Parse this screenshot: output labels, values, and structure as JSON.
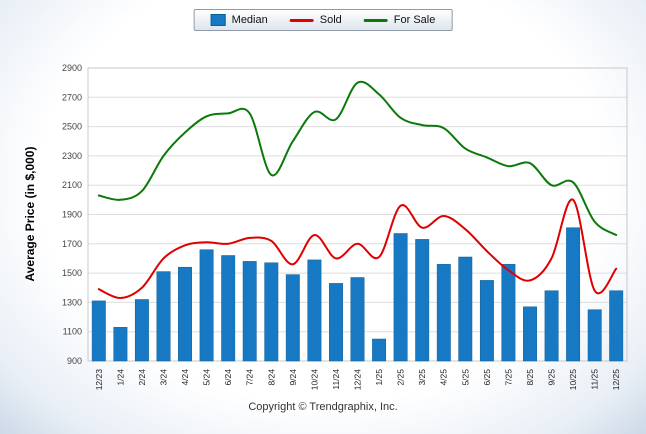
{
  "footer": {
    "copyright": "Copyright © Trendgraphix, Inc."
  },
  "chart_data": {
    "type": "bar",
    "subtype": "combo-bar-line",
    "title": "",
    "xlabel": "",
    "ylabel": "Average Price (in $,000)",
    "ylim": [
      900,
      2900
    ],
    "ytick_step": 200,
    "grid": true,
    "legend_position": "top",
    "categories": [
      "12/23",
      "1/24",
      "2/24",
      "3/24",
      "4/24",
      "5/24",
      "6/24",
      "7/24",
      "8/24",
      "9/24",
      "10/24",
      "11/24",
      "12/24",
      "1/25",
      "2/25",
      "3/25",
      "4/25",
      "5/25",
      "6/25",
      "7/25",
      "8/25",
      "9/25",
      "10/25",
      "11/25",
      "12/25"
    ],
    "series": [
      {
        "name": "Median",
        "type": "bar",
        "color": "#1779c4",
        "border_color": "#0d5f96",
        "values": [
          1310,
          1130,
          1320,
          1510,
          1540,
          1660,
          1620,
          1580,
          1570,
          1490,
          1590,
          1430,
          1470,
          1050,
          1770,
          1730,
          1560,
          1610,
          1450,
          1560,
          1270,
          1380,
          1810,
          1250,
          1380
        ]
      },
      {
        "name": "Sold",
        "type": "line",
        "color": "#e00000",
        "values": [
          1390,
          1330,
          1400,
          1600,
          1690,
          1710,
          1700,
          1740,
          1720,
          1560,
          1760,
          1600,
          1700,
          1610,
          1960,
          1810,
          1890,
          1800,
          1650,
          1520,
          1450,
          1600,
          2000,
          1380,
          1530
        ]
      },
      {
        "name": "For Sale",
        "type": "line",
        "color": "#0b7a0b",
        "values": [
          2030,
          2000,
          2060,
          2300,
          2460,
          2570,
          2590,
          2590,
          2170,
          2400,
          2600,
          2550,
          2800,
          2720,
          2560,
          2510,
          2490,
          2350,
          2290,
          2230,
          2250,
          2100,
          2120,
          1850,
          1760
        ]
      }
    ]
  }
}
